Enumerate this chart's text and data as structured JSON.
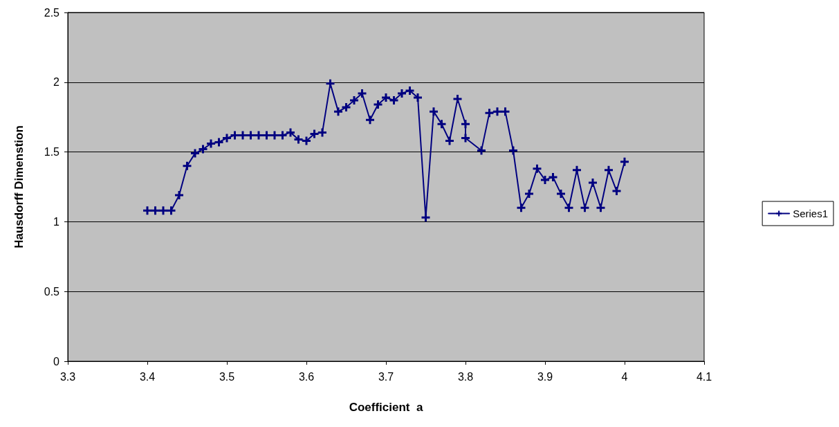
{
  "chart_data": {
    "type": "line",
    "xlabel": "Coefficient  a",
    "ylabel": "Hausdorff Dimenstion",
    "x": [
      3.4,
      3.41,
      3.42,
      3.43,
      3.44,
      3.45,
      3.46,
      3.47,
      3.48,
      3.49,
      3.5,
      3.51,
      3.52,
      3.53,
      3.54,
      3.55,
      3.56,
      3.57,
      3.58,
      3.59,
      3.6,
      3.61,
      3.62,
      3.63,
      3.64,
      3.65,
      3.66,
      3.67,
      3.68,
      3.69,
      3.7,
      3.71,
      3.72,
      3.73,
      3.74,
      3.75,
      3.76,
      3.77,
      3.78,
      3.79,
      3.8,
      3.8,
      3.82,
      3.83,
      3.84,
      3.85,
      3.86,
      3.87,
      3.88,
      3.89,
      3.9,
      3.91,
      3.92,
      3.93,
      3.94,
      3.95,
      3.96,
      3.97,
      3.98,
      3.99,
      4.0
    ],
    "series": [
      {
        "name": "Series1",
        "color": "#000080",
        "values": [
          1.08,
          1.08,
          1.08,
          1.08,
          1.19,
          1.4,
          1.49,
          1.52,
          1.56,
          1.57,
          1.6,
          1.62,
          1.62,
          1.62,
          1.62,
          1.62,
          1.62,
          1.62,
          1.64,
          1.59,
          1.58,
          1.63,
          1.64,
          1.99,
          1.79,
          1.82,
          1.87,
          1.92,
          1.73,
          1.84,
          1.89,
          1.87,
          1.92,
          1.94,
          1.89,
          1.03,
          1.79,
          1.7,
          1.58,
          1.88,
          1.7,
          1.6,
          1.51,
          1.78,
          1.79,
          1.79,
          1.51,
          1.1,
          1.2,
          1.38,
          1.3,
          1.32,
          1.2,
          1.1,
          1.37,
          1.1,
          1.28,
          1.1,
          1.37,
          1.22,
          1.43
        ]
      }
    ],
    "xlim": [
      3.3,
      4.1
    ],
    "xticks": [
      3.3,
      3.4,
      3.5,
      3.6,
      3.7,
      3.8,
      3.9,
      4,
      4.1
    ],
    "ylim": [
      0,
      2.5
    ],
    "yticks": [
      0,
      0.5,
      1,
      1.5,
      2,
      2.5
    ],
    "grid": "y",
    "legend": "right",
    "marker": "cross",
    "line_style": "solid"
  }
}
